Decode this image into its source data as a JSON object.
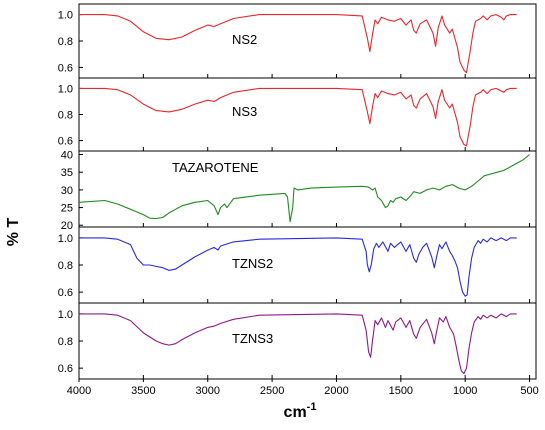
{
  "chart_data": {
    "type": "line",
    "xlabel": "cm",
    "xlabel_sup": "-1",
    "ylabel": "% T",
    "x_reversed": true,
    "xlim": [
      4000,
      450
    ],
    "xticks": [
      4000,
      3500,
      3000,
      2500,
      2000,
      1500,
      1000,
      500
    ],
    "xtick_labels": [
      "4000",
      "3500",
      "3000",
      "2500",
      "2000",
      "1500",
      "1000",
      "500"
    ],
    "panels": [
      {
        "label": "NS2",
        "color": "#e8262b",
        "ylim": [
          0.52,
          1.08
        ],
        "yticks": [
          0.6,
          0.8,
          1.0
        ],
        "ytick_labels": [
          "0.6",
          "0.8",
          "1.0"
        ],
        "points": [
          [
            4000,
            1.0
          ],
          [
            3800,
            1.0
          ],
          [
            3700,
            0.99
          ],
          [
            3600,
            0.95
          ],
          [
            3500,
            0.87
          ],
          [
            3400,
            0.82
          ],
          [
            3300,
            0.81
          ],
          [
            3200,
            0.83
          ],
          [
            3100,
            0.88
          ],
          [
            3000,
            0.92
          ],
          [
            2950,
            0.91
          ],
          [
            2900,
            0.93
          ],
          [
            2800,
            0.97
          ],
          [
            2600,
            1.0
          ],
          [
            2000,
            1.0
          ],
          [
            1800,
            0.99
          ],
          [
            1760,
            0.82
          ],
          [
            1740,
            0.72
          ],
          [
            1720,
            0.85
          ],
          [
            1700,
            0.96
          ],
          [
            1680,
            0.93
          ],
          [
            1650,
            0.98
          ],
          [
            1600,
            0.96
          ],
          [
            1550,
            0.95
          ],
          [
            1500,
            0.97
          ],
          [
            1460,
            0.92
          ],
          [
            1420,
            0.96
          ],
          [
            1400,
            0.88
          ],
          [
            1380,
            0.86
          ],
          [
            1350,
            0.93
          ],
          [
            1300,
            0.96
          ],
          [
            1250,
            0.86
          ],
          [
            1230,
            0.76
          ],
          [
            1210,
            0.9
          ],
          [
            1180,
            0.99
          ],
          [
            1160,
            0.92
          ],
          [
            1120,
            0.86
          ],
          [
            1100,
            0.89
          ],
          [
            1060,
            0.75
          ],
          [
            1040,
            0.64
          ],
          [
            1010,
            0.58
          ],
          [
            990,
            0.56
          ],
          [
            960,
            0.73
          ],
          [
            940,
            0.86
          ],
          [
            920,
            0.95
          ],
          [
            880,
            0.97
          ],
          [
            860,
            0.99
          ],
          [
            830,
            0.96
          ],
          [
            800,
            0.99
          ],
          [
            760,
            1.0
          ],
          [
            720,
            0.98
          ],
          [
            700,
            0.96
          ],
          [
            680,
            0.99
          ],
          [
            650,
            1.0
          ],
          [
            600,
            1.0
          ]
        ]
      },
      {
        "label": "NS3",
        "color": "#e8262b",
        "ylim": [
          0.52,
          1.08
        ],
        "yticks": [
          0.6,
          0.8,
          1.0
        ],
        "ytick_labels": [
          "0.6",
          "0.8",
          "1.0"
        ],
        "points": [
          [
            4000,
            1.0
          ],
          [
            3800,
            1.0
          ],
          [
            3700,
            0.99
          ],
          [
            3600,
            0.95
          ],
          [
            3500,
            0.88
          ],
          [
            3400,
            0.83
          ],
          [
            3300,
            0.82
          ],
          [
            3200,
            0.84
          ],
          [
            3100,
            0.88
          ],
          [
            3000,
            0.91
          ],
          [
            2950,
            0.9
          ],
          [
            2900,
            0.93
          ],
          [
            2800,
            0.97
          ],
          [
            2600,
            1.0
          ],
          [
            2000,
            1.0
          ],
          [
            1800,
            0.99
          ],
          [
            1760,
            0.82
          ],
          [
            1740,
            0.73
          ],
          [
            1720,
            0.86
          ],
          [
            1700,
            0.96
          ],
          [
            1680,
            0.93
          ],
          [
            1650,
            0.98
          ],
          [
            1600,
            0.96
          ],
          [
            1550,
            0.95
          ],
          [
            1500,
            0.97
          ],
          [
            1460,
            0.92
          ],
          [
            1420,
            0.95
          ],
          [
            1400,
            0.87
          ],
          [
            1380,
            0.85
          ],
          [
            1350,
            0.92
          ],
          [
            1300,
            0.96
          ],
          [
            1250,
            0.86
          ],
          [
            1230,
            0.77
          ],
          [
            1210,
            0.9
          ],
          [
            1180,
            0.99
          ],
          [
            1160,
            0.91
          ],
          [
            1120,
            0.85
          ],
          [
            1100,
            0.88
          ],
          [
            1060,
            0.74
          ],
          [
            1040,
            0.63
          ],
          [
            1010,
            0.57
          ],
          [
            990,
            0.56
          ],
          [
            960,
            0.72
          ],
          [
            940,
            0.86
          ],
          [
            920,
            0.95
          ],
          [
            880,
            0.97
          ],
          [
            860,
            0.99
          ],
          [
            830,
            0.96
          ],
          [
            800,
            0.99
          ],
          [
            760,
            1.0
          ],
          [
            720,
            0.98
          ],
          [
            700,
            0.97
          ],
          [
            680,
            0.99
          ],
          [
            650,
            1.0
          ],
          [
            600,
            1.0
          ]
        ]
      },
      {
        "label": "TAZAROTENE",
        "color": "#1f8a1f",
        "ylim": [
          19.5,
          41
        ],
        "yticks": [
          20,
          25,
          30,
          35,
          40
        ],
        "ytick_labels": [
          "20",
          "25",
          "30",
          "35",
          "40"
        ],
        "points": [
          [
            4000,
            26.5
          ],
          [
            3800,
            27.0
          ],
          [
            3700,
            26.0
          ],
          [
            3600,
            24.5
          ],
          [
            3500,
            23.0
          ],
          [
            3450,
            22.0
          ],
          [
            3400,
            21.9
          ],
          [
            3350,
            22.2
          ],
          [
            3300,
            23.5
          ],
          [
            3200,
            25.5
          ],
          [
            3100,
            26.5
          ],
          [
            3000,
            27.0
          ],
          [
            2950,
            25.5
          ],
          [
            2920,
            23.0
          ],
          [
            2900,
            25.0
          ],
          [
            2870,
            26.0
          ],
          [
            2850,
            25.0
          ],
          [
            2800,
            27.5
          ],
          [
            2600,
            28.5
          ],
          [
            2400,
            29.0
          ],
          [
            2380,
            28.0
          ],
          [
            2360,
            21.0
          ],
          [
            2340,
            25.0
          ],
          [
            2330,
            30.5
          ],
          [
            2300,
            30.0
          ],
          [
            2200,
            30.5
          ],
          [
            2000,
            30.8
          ],
          [
            1800,
            31.0
          ],
          [
            1750,
            30.8
          ],
          [
            1720,
            30.0
          ],
          [
            1700,
            30.5
          ],
          [
            1680,
            28.0
          ],
          [
            1650,
            27.0
          ],
          [
            1620,
            25.0
          ],
          [
            1600,
            25.5
          ],
          [
            1580,
            27.0
          ],
          [
            1560,
            26.5
          ],
          [
            1540,
            27.5
          ],
          [
            1500,
            28.0
          ],
          [
            1460,
            27.0
          ],
          [
            1420,
            28.5
          ],
          [
            1400,
            29.5
          ],
          [
            1350,
            29.0
          ],
          [
            1300,
            30.0
          ],
          [
            1250,
            30.5
          ],
          [
            1200,
            30.0
          ],
          [
            1150,
            31.0
          ],
          [
            1100,
            31.5
          ],
          [
            1050,
            30.5
          ],
          [
            1000,
            30.0
          ],
          [
            950,
            31.0
          ],
          [
            900,
            32.5
          ],
          [
            850,
            34.0
          ],
          [
            800,
            34.5
          ],
          [
            750,
            35.0
          ],
          [
            700,
            35.5
          ],
          [
            650,
            36.5
          ],
          [
            600,
            37.5
          ],
          [
            550,
            38.5
          ],
          [
            500,
            40.0
          ]
        ]
      },
      {
        "label": "TZNS2",
        "color": "#2929e0",
        "ylim": [
          0.52,
          1.08
        ],
        "yticks": [
          0.6,
          0.8,
          1.0
        ],
        "ytick_labels": [
          "0.6",
          "0.8",
          "1.0"
        ],
        "points": [
          [
            4000,
            1.0
          ],
          [
            3800,
            1.0
          ],
          [
            3700,
            0.99
          ],
          [
            3600,
            0.95
          ],
          [
            3550,
            0.85
          ],
          [
            3500,
            0.8
          ],
          [
            3450,
            0.8
          ],
          [
            3400,
            0.79
          ],
          [
            3350,
            0.78
          ],
          [
            3300,
            0.76
          ],
          [
            3250,
            0.77
          ],
          [
            3200,
            0.8
          ],
          [
            3100,
            0.86
          ],
          [
            3000,
            0.91
          ],
          [
            2950,
            0.93
          ],
          [
            2920,
            0.91
          ],
          [
            2900,
            0.94
          ],
          [
            2800,
            0.97
          ],
          [
            2600,
            0.99
          ],
          [
            2000,
            1.0
          ],
          [
            1800,
            0.99
          ],
          [
            1770,
            0.9
          ],
          [
            1760,
            0.8
          ],
          [
            1745,
            0.75
          ],
          [
            1730,
            0.8
          ],
          [
            1710,
            0.92
          ],
          [
            1690,
            0.96
          ],
          [
            1670,
            0.93
          ],
          [
            1640,
            0.97
          ],
          [
            1600,
            0.9
          ],
          [
            1580,
            0.96
          ],
          [
            1550,
            0.93
          ],
          [
            1500,
            0.97
          ],
          [
            1460,
            0.9
          ],
          [
            1430,
            0.95
          ],
          [
            1400,
            0.85
          ],
          [
            1380,
            0.82
          ],
          [
            1360,
            0.88
          ],
          [
            1330,
            0.93
          ],
          [
            1300,
            0.96
          ],
          [
            1260,
            0.86
          ],
          [
            1240,
            0.78
          ],
          [
            1220,
            0.87
          ],
          [
            1200,
            0.95
          ],
          [
            1180,
            0.92
          ],
          [
            1150,
            0.97
          ],
          [
            1120,
            0.9
          ],
          [
            1100,
            0.87
          ],
          [
            1080,
            0.83
          ],
          [
            1060,
            0.78
          ],
          [
            1040,
            0.68
          ],
          [
            1020,
            0.6
          ],
          [
            1000,
            0.57
          ],
          [
            985,
            0.58
          ],
          [
            970,
            0.72
          ],
          [
            950,
            0.85
          ],
          [
            930,
            0.93
          ],
          [
            900,
            0.98
          ],
          [
            880,
            0.96
          ],
          [
            860,
            0.99
          ],
          [
            830,
            0.97
          ],
          [
            800,
            1.0
          ],
          [
            760,
            0.98
          ],
          [
            720,
            1.0
          ],
          [
            680,
            0.98
          ],
          [
            650,
            1.0
          ],
          [
            600,
            1.0
          ]
        ]
      },
      {
        "label": "TZNS3",
        "color": "#8b1a8b",
        "ylim": [
          0.52,
          1.08
        ],
        "yticks": [
          0.6,
          0.8,
          1.0
        ],
        "ytick_labels": [
          "0.6",
          "0.8",
          "1.0"
        ],
        "points": [
          [
            4000,
            1.0
          ],
          [
            3800,
            1.0
          ],
          [
            3700,
            0.99
          ],
          [
            3600,
            0.95
          ],
          [
            3500,
            0.86
          ],
          [
            3400,
            0.8
          ],
          [
            3350,
            0.78
          ],
          [
            3300,
            0.77
          ],
          [
            3250,
            0.78
          ],
          [
            3200,
            0.81
          ],
          [
            3100,
            0.86
          ],
          [
            3000,
            0.9
          ],
          [
            2950,
            0.91
          ],
          [
            2900,
            0.93
          ],
          [
            2800,
            0.96
          ],
          [
            2600,
            0.99
          ],
          [
            2000,
            1.0
          ],
          [
            1800,
            0.99
          ],
          [
            1770,
            0.88
          ],
          [
            1750,
            0.72
          ],
          [
            1735,
            0.68
          ],
          [
            1720,
            0.8
          ],
          [
            1700,
            0.95
          ],
          [
            1680,
            0.92
          ],
          [
            1650,
            0.97
          ],
          [
            1620,
            0.9
          ],
          [
            1600,
            0.95
          ],
          [
            1560,
            0.88
          ],
          [
            1540,
            0.94
          ],
          [
            1500,
            0.97
          ],
          [
            1460,
            0.9
          ],
          [
            1430,
            0.95
          ],
          [
            1400,
            0.85
          ],
          [
            1380,
            0.82
          ],
          [
            1350,
            0.9
          ],
          [
            1300,
            0.96
          ],
          [
            1260,
            0.86
          ],
          [
            1240,
            0.78
          ],
          [
            1220,
            0.88
          ],
          [
            1200,
            0.97
          ],
          [
            1170,
            0.94
          ],
          [
            1150,
            0.98
          ],
          [
            1120,
            0.9
          ],
          [
            1090,
            0.85
          ],
          [
            1070,
            0.76
          ],
          [
            1050,
            0.66
          ],
          [
            1030,
            0.58
          ],
          [
            1010,
            0.56
          ],
          [
            990,
            0.6
          ],
          [
            970,
            0.75
          ],
          [
            950,
            0.86
          ],
          [
            930,
            0.94
          ],
          [
            900,
            0.98
          ],
          [
            880,
            0.96
          ],
          [
            860,
            0.99
          ],
          [
            830,
            0.97
          ],
          [
            800,
            0.99
          ],
          [
            760,
            0.97
          ],
          [
            720,
            1.0
          ],
          [
            680,
            0.98
          ],
          [
            650,
            1.0
          ],
          [
            600,
            1.0
          ]
        ]
      }
    ]
  }
}
